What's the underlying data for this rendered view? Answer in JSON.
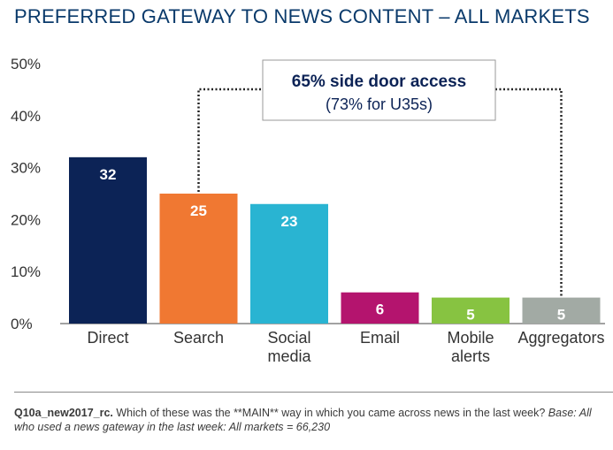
{
  "title": "PREFERRED GATEWAY TO NEWS CONTENT – ALL MARKETS",
  "chart_data": {
    "type": "bar",
    "categories": [
      [
        "Direct"
      ],
      [
        "Search"
      ],
      [
        "Social",
        "media"
      ],
      [
        "Email"
      ],
      [
        "Mobile",
        "alerts"
      ],
      [
        "Aggregators"
      ]
    ],
    "values": [
      32,
      25,
      23,
      6,
      5,
      5
    ],
    "data_labels": [
      "32",
      "25",
      "23",
      "6",
      "5",
      "5"
    ],
    "colors": [
      "#0c2356",
      "#f07832",
      "#29b4d2",
      "#b4146e",
      "#87c341",
      "#a2aaa4"
    ],
    "ylim": [
      0,
      50
    ],
    "yticks": [
      0,
      10,
      20,
      30,
      40,
      50
    ],
    "ytick_labels": [
      "0%",
      "10%",
      "20%",
      "30%",
      "40%",
      "50%"
    ],
    "xlabel": "",
    "ylabel": "",
    "grid": false,
    "annotation": {
      "line1": "65% side door access",
      "line2": "(73% for U35s)",
      "spans_categories": [
        "Search",
        "Aggregators"
      ]
    }
  },
  "footnote": {
    "code": "Q10a_new2017_rc.",
    "question": " Which of these was the **MAIN** way in which you came across news in the last week? ",
    "base": "Base: All who used a news gateway in the last week: All markets = 66,230"
  }
}
